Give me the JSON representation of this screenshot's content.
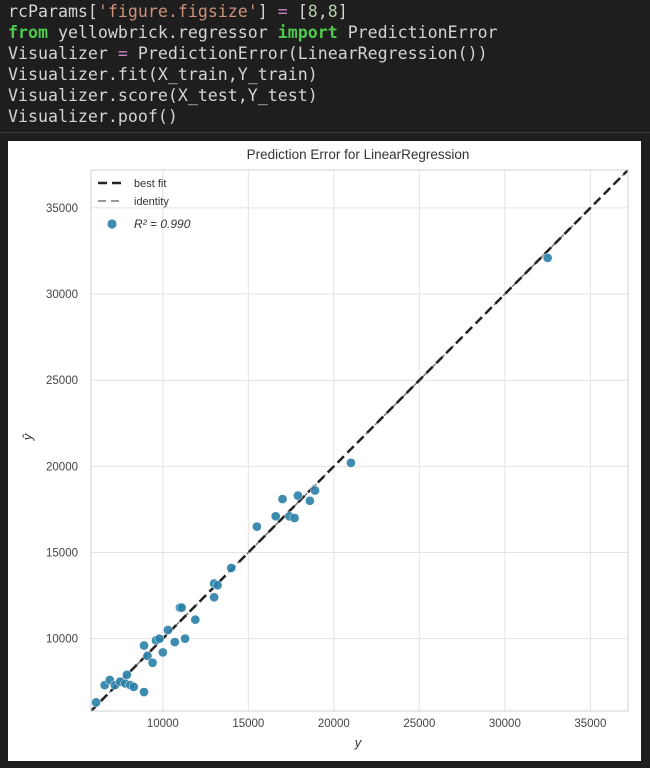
{
  "code": {
    "line1": {
      "a": "rcParams[",
      "b": "'figure.figsize'",
      "c": "] ",
      "d": "=",
      "e": " [",
      "f": "8",
      "g": ",",
      "h": "8",
      "i": "]"
    },
    "line2": {
      "a": "from",
      "b": " yellowbrick.regressor ",
      "c": "import",
      "d": " PredictionError"
    },
    "line3": {
      "a": "Visualizer ",
      "b": "=",
      "c": " PredictionError(LinearRegression())"
    },
    "line4": "Visualizer.fit(X_train,Y_train)",
    "line5": "Visualizer.score(X_test,Y_test)",
    "line6": "Visualizer.poof()"
  },
  "chart_data": {
    "type": "scatter",
    "title": "Prediction Error for LinearRegression",
    "xlabel": "y",
    "ylabel": "ŷ",
    "xlim": [
      5800,
      37200
    ],
    "ylim": [
      5800,
      37200
    ],
    "xticks": [
      10000,
      15000,
      20000,
      25000,
      30000,
      35000
    ],
    "yticks": [
      10000,
      15000,
      20000,
      25000,
      30000,
      35000
    ],
    "grid": true,
    "legend": {
      "placement": "top-left",
      "entries": [
        "best fit",
        "identity",
        "R² = 0.990"
      ]
    },
    "r2_label": "R² = 0.990",
    "point_color": "#2a7fa8",
    "best_fit_color": "#222222",
    "identity_color": "#777777",
    "points": [
      [
        6100,
        6300
      ],
      [
        6600,
        7300
      ],
      [
        6900,
        7600
      ],
      [
        7200,
        7300
      ],
      [
        7500,
        7500
      ],
      [
        7800,
        7400
      ],
      [
        7900,
        7900
      ],
      [
        8100,
        7300
      ],
      [
        8300,
        7200
      ],
      [
        8900,
        9600
      ],
      [
        8900,
        6900
      ],
      [
        9100,
        9000
      ],
      [
        9400,
        8600
      ],
      [
        9600,
        9900
      ],
      [
        9800,
        10000
      ],
      [
        10000,
        9200
      ],
      [
        10300,
        10500
      ],
      [
        10700,
        9800
      ],
      [
        11000,
        11800
      ],
      [
        11100,
        11800
      ],
      [
        11300,
        10000
      ],
      [
        11900,
        11100
      ],
      [
        13000,
        12400
      ],
      [
        13000,
        13200
      ],
      [
        13200,
        13100
      ],
      [
        14000,
        14100
      ],
      [
        15500,
        16500
      ],
      [
        16600,
        17100
      ],
      [
        17000,
        18100
      ],
      [
        17400,
        17100
      ],
      [
        17700,
        17000
      ],
      [
        17900,
        18300
      ],
      [
        18600,
        18000
      ],
      [
        18900,
        18600
      ],
      [
        21000,
        20200
      ],
      [
        32500,
        32100
      ]
    ]
  }
}
